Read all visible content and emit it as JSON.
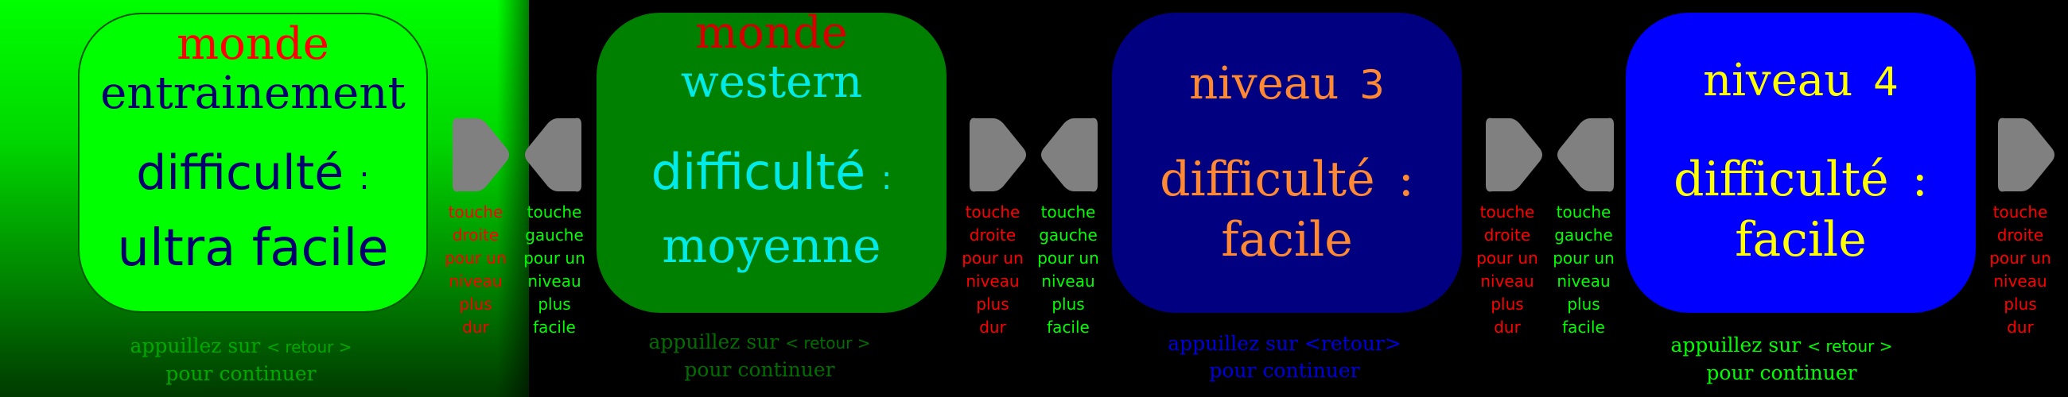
{
  "levels": [
    {
      "world_label": "monde",
      "name": "entrainement",
      "difficulty_label": "difficulté",
      "colon": ":",
      "difficulty_value": "ultra facile",
      "continue_line1_a": "appuillez sur",
      "continue_key": "< retour >",
      "continue_line2": "pour continuer",
      "colors": {
        "card_bg": "#00ff00",
        "card_border": "#005500",
        "text": "#00006e",
        "world": "#ff0000",
        "continue": "#00a800"
      }
    },
    {
      "world_label": "monde",
      "name": "western",
      "difficulty_label": "difficulté",
      "colon": ":",
      "difficulty_value": "moyenne",
      "continue_line1_a": "appuillez sur",
      "continue_key": "< retour >",
      "continue_line2": "pour continuer",
      "colors": {
        "card_bg": "#008000",
        "text": "#00eaea",
        "world": "#d40000",
        "continue": "#006e00"
      }
    },
    {
      "level_label": "niveau",
      "level_number": "3",
      "difficulty_label": "difficulté",
      "colon": ":",
      "difficulty_value": "facile",
      "continue_line1_a": "appuillez sur",
      "continue_key": "<retour>",
      "continue_line2": "pour continuer",
      "colors": {
        "card_bg": "#000080",
        "text": "#ff8833",
        "continue": "#0000dd"
      }
    },
    {
      "level_label": "niveau",
      "level_number": "4",
      "difficulty_label": "difficulté",
      "colon": ":",
      "difficulty_value": "facile",
      "continue_line1_a": "appuillez sur",
      "continue_key": "< retour >",
      "continue_line2": "pour continuer",
      "colors": {
        "card_bg": "#0000ff",
        "text": "#ffff00",
        "continue": "#00ff00"
      }
    }
  ],
  "hints": {
    "right": [
      "touche",
      "droite",
      "pour un",
      "niveau",
      "plus",
      "dur"
    ],
    "left": [
      "touche",
      "gauche",
      "pour un",
      "niveau",
      "plus",
      "facile"
    ]
  },
  "colors": {
    "arrow": "#808080",
    "hint_right": "#ff0000",
    "hint_left": "#00ff00"
  }
}
